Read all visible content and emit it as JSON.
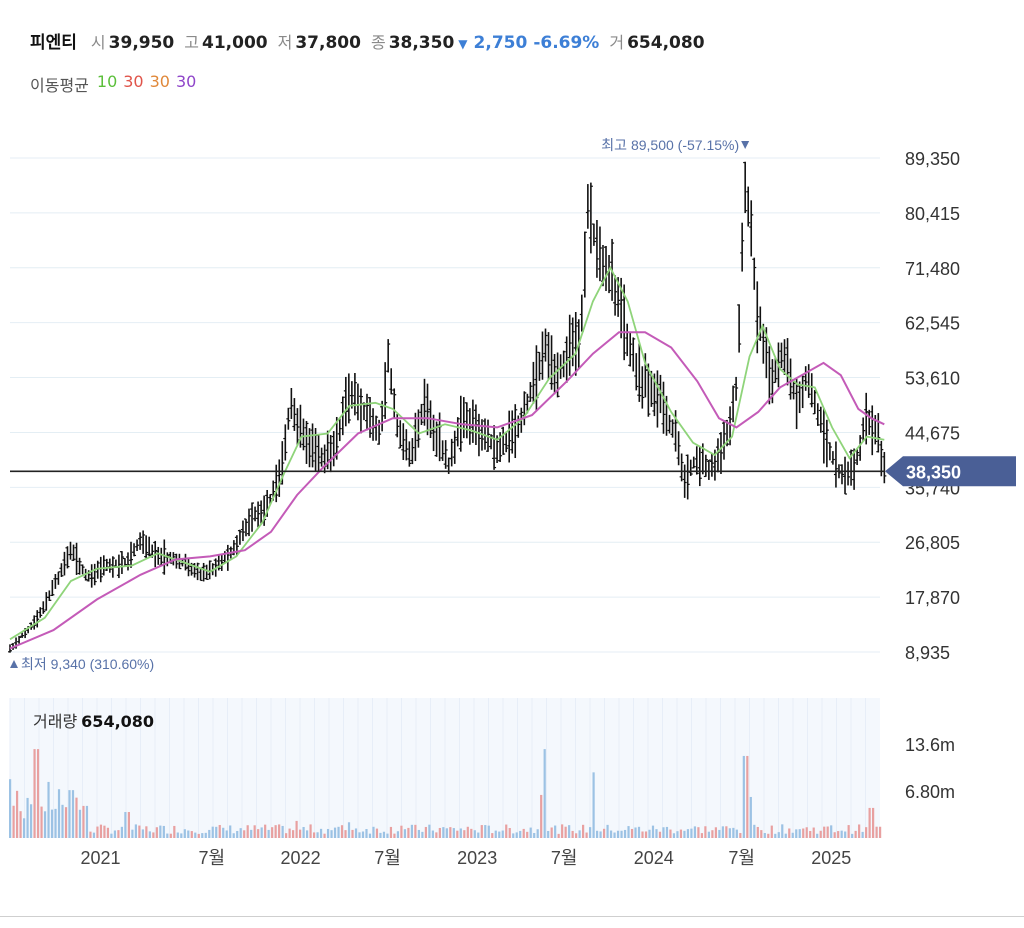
{
  "header": {
    "name": "피엔티",
    "open_label": "시",
    "open": "39,950",
    "high_label": "고",
    "high": "41,000",
    "low_label": "저",
    "low": "37,800",
    "close_label": "종",
    "close": "38,350",
    "change": "2,750",
    "change_pct": "-6.69%",
    "volume_label": "거",
    "volume": "654,080"
  },
  "ma_legend": {
    "title": "이동평균",
    "items": [
      {
        "label": "10",
        "color": "#5bbf3a"
      },
      {
        "label": "30",
        "color": "#e0544a"
      },
      {
        "label": "30",
        "color": "#e0883a"
      },
      {
        "label": "30",
        "color": "#8f45c9"
      }
    ]
  },
  "volume_panel": {
    "label": "거래량",
    "value": "654,080"
  },
  "colors": {
    "candle": "#111111",
    "ma_short": "#8fd47a",
    "ma_long": "#c45bb8",
    "current_price_tag": "#4a5f96",
    "annotation": "#5872a8",
    "vol_up": "#e8a0a0",
    "vol_down": "#9cc2e4",
    "grid": "#e4eef4"
  },
  "chart_data": {
    "type": "line",
    "title": "",
    "price_axis": {
      "ticks": [
        "89,350",
        "80,415",
        "71,480",
        "62,545",
        "53,610",
        "44,675",
        "35,740",
        "26,805",
        "17,870",
        "8,935"
      ],
      "tick_values": [
        89350,
        80415,
        71480,
        62545,
        53610,
        44675,
        35740,
        26805,
        17870,
        8935
      ],
      "ylim": [
        4000,
        95000
      ]
    },
    "volume_axis": {
      "ticks": [
        "13.6m",
        "6.80m"
      ],
      "tick_values": [
        13600000,
        6800000
      ],
      "ylim": [
        0,
        20400000
      ]
    },
    "time_axis": {
      "labels": [
        "2021",
        "7월",
        "2022",
        "7월",
        "2023",
        "7월",
        "2024",
        "7월",
        "2025"
      ],
      "label_positions": [
        0.104,
        0.232,
        0.334,
        0.434,
        0.537,
        0.637,
        0.74,
        0.841,
        0.944
      ],
      "range": [
        "2020-08",
        "2025-05"
      ]
    },
    "current_price": {
      "label": "38,350",
      "value": 38350
    },
    "max_annotation": {
      "label": "최고",
      "value_text": "89,500 (-57.15%)",
      "value": 89500,
      "t": 0.845
    },
    "min_annotation": {
      "label": "최저",
      "value_text": "9,340 (310.60%)",
      "value": 9340,
      "t": 0.0
    },
    "price_series": {
      "name": "",
      "points": [
        [
          0.0,
          9340
        ],
        [
          0.03,
          14000
        ],
        [
          0.055,
          21000
        ],
        [
          0.07,
          25500
        ],
        [
          0.09,
          21000
        ],
        [
          0.11,
          23000
        ],
        [
          0.135,
          23500
        ],
        [
          0.15,
          27000
        ],
        [
          0.17,
          24500
        ],
        [
          0.195,
          24000
        ],
        [
          0.215,
          21500
        ],
        [
          0.235,
          22500
        ],
        [
          0.255,
          25500
        ],
        [
          0.275,
          30000
        ],
        [
          0.3,
          34000
        ],
        [
          0.31,
          37000
        ],
        [
          0.322,
          49000
        ],
        [
          0.335,
          44000
        ],
        [
          0.355,
          41000
        ],
        [
          0.37,
          40500
        ],
        [
          0.39,
          51000
        ],
        [
          0.41,
          48000
        ],
        [
          0.425,
          45000
        ],
        [
          0.435,
          57000
        ],
        [
          0.445,
          45500
        ],
        [
          0.46,
          40500
        ],
        [
          0.475,
          49000
        ],
        [
          0.49,
          44500
        ],
        [
          0.505,
          39500
        ],
        [
          0.52,
          47000
        ],
        [
          0.54,
          45000
        ],
        [
          0.56,
          42500
        ],
        [
          0.58,
          44000
        ],
        [
          0.6,
          52000
        ],
        [
          0.615,
          58000
        ],
        [
          0.625,
          54000
        ],
        [
          0.64,
          56500
        ],
        [
          0.655,
          60000
        ],
        [
          0.665,
          82000
        ],
        [
          0.675,
          74000
        ],
        [
          0.69,
          71000
        ],
        [
          0.71,
          60000
        ],
        [
          0.725,
          53000
        ],
        [
          0.745,
          51000
        ],
        [
          0.765,
          44000
        ],
        [
          0.775,
          36500
        ],
        [
          0.79,
          41000
        ],
        [
          0.805,
          38500
        ],
        [
          0.82,
          42000
        ],
        [
          0.835,
          52000
        ],
        [
          0.845,
          86000
        ],
        [
          0.852,
          78000
        ],
        [
          0.86,
          63000
        ],
        [
          0.875,
          53000
        ],
        [
          0.89,
          58000
        ],
        [
          0.905,
          49000
        ],
        [
          0.915,
          54000
        ],
        [
          0.925,
          50000
        ],
        [
          0.94,
          42000
        ],
        [
          0.955,
          38000
        ],
        [
          0.97,
          38500
        ],
        [
          0.985,
          47500
        ],
        [
          0.998,
          43500
        ],
        [
          1.005,
          38350
        ]
      ]
    },
    "ma_short_series": {
      "name": "",
      "points": [
        [
          0.0,
          11000
        ],
        [
          0.04,
          14500
        ],
        [
          0.07,
          20500
        ],
        [
          0.1,
          22500
        ],
        [
          0.14,
          23000
        ],
        [
          0.17,
          25000
        ],
        [
          0.2,
          23500
        ],
        [
          0.23,
          22000
        ],
        [
          0.26,
          24500
        ],
        [
          0.29,
          30000
        ],
        [
          0.315,
          38000
        ],
        [
          0.335,
          44000
        ],
        [
          0.365,
          44500
        ],
        [
          0.39,
          49000
        ],
        [
          0.42,
          49500
        ],
        [
          0.44,
          48500
        ],
        [
          0.47,
          44500
        ],
        [
          0.5,
          46000
        ],
        [
          0.53,
          45000
        ],
        [
          0.56,
          43500
        ],
        [
          0.59,
          47000
        ],
        [
          0.62,
          53500
        ],
        [
          0.65,
          57500
        ],
        [
          0.67,
          66000
        ],
        [
          0.69,
          71500
        ],
        [
          0.71,
          66000
        ],
        [
          0.73,
          56000
        ],
        [
          0.76,
          48000
        ],
        [
          0.785,
          43000
        ],
        [
          0.81,
          41000
        ],
        [
          0.83,
          44000
        ],
        [
          0.85,
          57000
        ],
        [
          0.865,
          62000
        ],
        [
          0.885,
          55000
        ],
        [
          0.905,
          52500
        ],
        [
          0.925,
          52000
        ],
        [
          0.945,
          45500
        ],
        [
          0.965,
          40500
        ],
        [
          0.985,
          44000
        ],
        [
          1.005,
          43500
        ]
      ]
    },
    "ma_long_series": {
      "name": "",
      "points": [
        [
          0.0,
          9500
        ],
        [
          0.05,
          12500
        ],
        [
          0.1,
          17500
        ],
        [
          0.15,
          21500
        ],
        [
          0.19,
          24000
        ],
        [
          0.23,
          24500
        ],
        [
          0.27,
          25500
        ],
        [
          0.3,
          28500
        ],
        [
          0.33,
          34500
        ],
        [
          0.36,
          39000
        ],
        [
          0.4,
          44500
        ],
        [
          0.44,
          47000
        ],
        [
          0.48,
          47000
        ],
        [
          0.52,
          46000
        ],
        [
          0.56,
          45500
        ],
        [
          0.6,
          47500
        ],
        [
          0.64,
          53000
        ],
        [
          0.67,
          57500
        ],
        [
          0.7,
          61000
        ],
        [
          0.73,
          61000
        ],
        [
          0.76,
          58500
        ],
        [
          0.79,
          53000
        ],
        [
          0.815,
          47000
        ],
        [
          0.835,
          45500
        ],
        [
          0.86,
          48000
        ],
        [
          0.885,
          52000
        ],
        [
          0.91,
          54000
        ],
        [
          0.935,
          56000
        ],
        [
          0.955,
          54000
        ],
        [
          0.975,
          48500
        ],
        [
          0.99,
          47000
        ],
        [
          1.005,
          46000
        ]
      ]
    },
    "volume_spikes": [
      {
        "t": 0.0,
        "v": 8600000
      },
      {
        "t": 0.03,
        "v": 13000000
      },
      {
        "t": 0.045,
        "v": 8200000
      },
      {
        "t": 0.07,
        "v": 7000000
      },
      {
        "t": 0.135,
        "v": 3800000
      },
      {
        "t": 0.33,
        "v": 2500000
      },
      {
        "t": 0.39,
        "v": 2300000
      },
      {
        "t": 0.45,
        "v": 1800000
      },
      {
        "t": 0.61,
        "v": 6300000
      },
      {
        "t": 0.615,
        "v": 13000000
      },
      {
        "t": 0.67,
        "v": 9600000
      },
      {
        "t": 0.845,
        "v": 12000000
      },
      {
        "t": 0.85,
        "v": 6000000
      },
      {
        "t": 0.99,
        "v": 4400000
      }
    ]
  }
}
